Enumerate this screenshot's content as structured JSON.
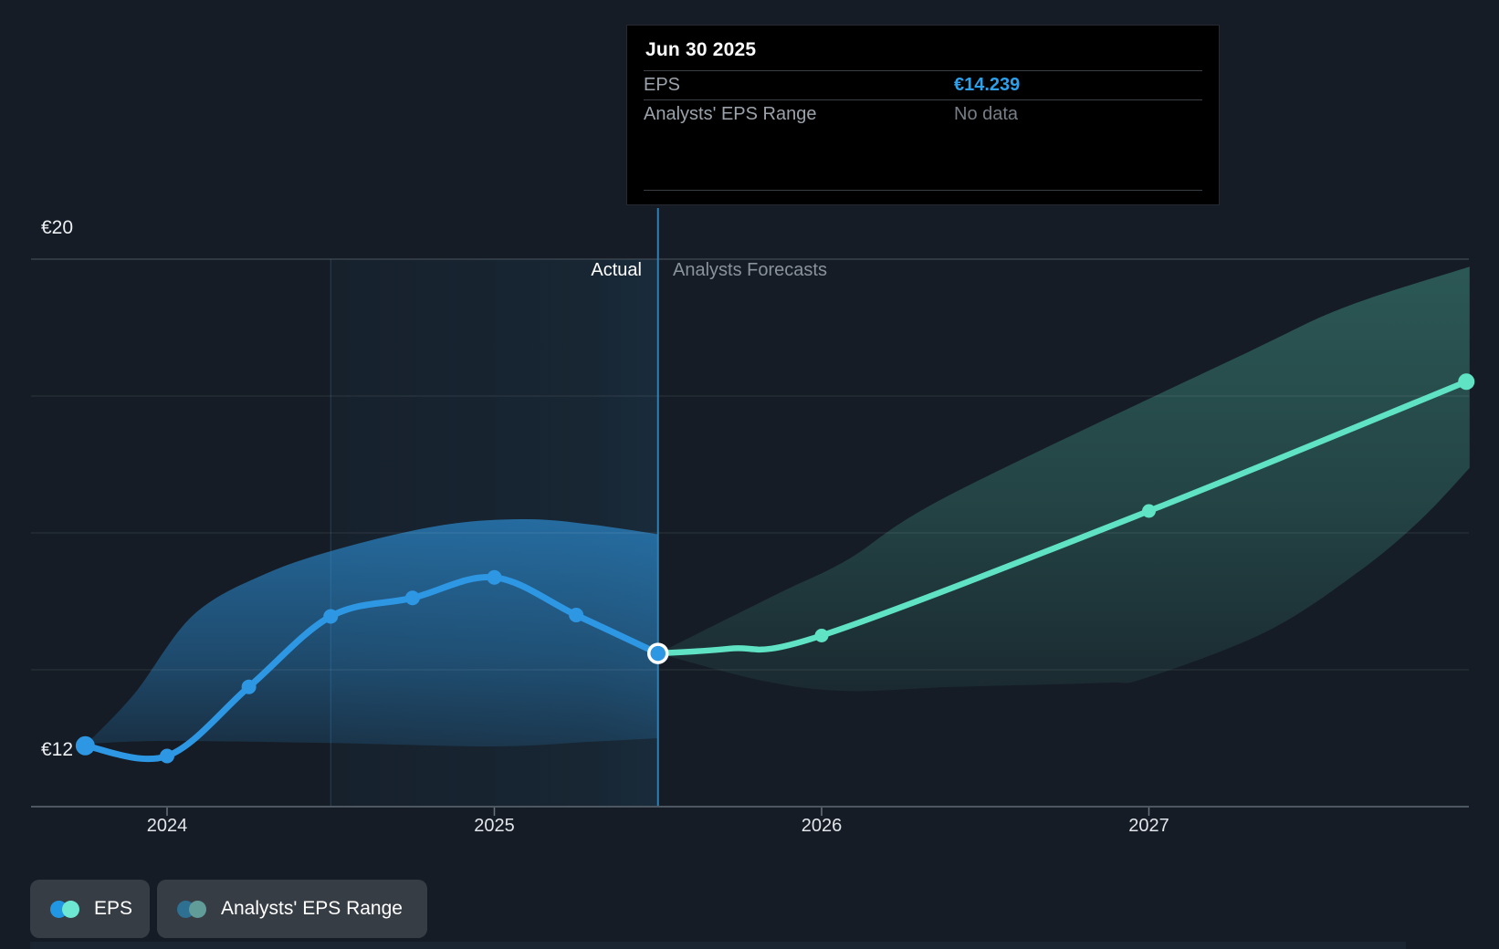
{
  "colors": {
    "background": "#151C25",
    "tooltip_bg": "#000000",
    "actual_blue": "#2E97E3",
    "forecast_teal": "#5FE3C4",
    "value_blue": "#2DA0EC",
    "muted_text": "#9AA2AB",
    "no_data_text": "#767E87",
    "section_label_gray": "#8A929C",
    "grid_top": "#4A535E",
    "grid": "rgba(255,255,255,0.10)",
    "axis_line": "#4D5761",
    "tick": "#6B747E",
    "divider_line": "#2F80B4",
    "highlight_edge": "rgba(140,190,235,0.20)",
    "legend_pill_bg": "#373D45",
    "legend_eps_dot1": "#2196E3",
    "legend_eps_dot2": "#6EE7D2",
    "legend_range_dot1": "#2E7092",
    "legend_range_dot2": "#619C99"
  },
  "tooltip": {
    "title": "Jun 30 2025",
    "rows": [
      {
        "label": "EPS",
        "value": "€14.239"
      },
      {
        "label": "Analysts' EPS Range",
        "value": "No data"
      }
    ]
  },
  "section_labels": {
    "actual": "Actual",
    "forecast": "Analysts Forecasts"
  },
  "y_axis": {
    "top_label": "€20",
    "bottom_label": "€12"
  },
  "legend": [
    {
      "label": "EPS"
    },
    {
      "label": "Analysts' EPS Range"
    }
  ],
  "chart_data": {
    "type": "line",
    "title": "EPS actual vs analysts forecast",
    "currency": "EUR",
    "ylim": [
      12,
      20
    ],
    "xlim_years": [
      2023.58,
      2027.98
    ],
    "grid": "horizontal",
    "y_gridline_values": [
      20,
      18,
      16,
      14
    ],
    "y_axis_labels": [
      {
        "value": 20,
        "label": "€20"
      },
      {
        "value": 12,
        "label": "€12"
      }
    ],
    "x_ticks": [
      {
        "year": 2024,
        "label": "2024"
      },
      {
        "year": 2025,
        "label": "2025"
      },
      {
        "year": 2026,
        "label": "2026"
      },
      {
        "year": 2027,
        "label": "2027"
      }
    ],
    "divider": {
      "x_year": 2025.5,
      "date_label": "Jun 30 2025",
      "left_label": "Actual",
      "right_label": "Analysts Forecasts"
    },
    "highlight_span_years": [
      2024.5,
      2025.5
    ],
    "selected_point": {
      "date": "Jun 30 2025",
      "series": "EPS",
      "value": 14.239
    },
    "series": [
      {
        "name": "EPS (actual)",
        "color": "#2E97E3",
        "points": [
          [
            2023.75,
            12.89
          ],
          [
            2024.0,
            12.74
          ],
          [
            2024.25,
            13.75
          ],
          [
            2024.5,
            14.78
          ],
          [
            2024.75,
            15.05
          ],
          [
            2025.0,
            15.35
          ],
          [
            2025.25,
            14.8
          ],
          [
            2025.5,
            14.239
          ]
        ],
        "dot_x": [
          2023.75,
          2024.0,
          2024.25,
          2024.5,
          2024.75,
          2025.0,
          2025.25
        ]
      },
      {
        "name": "EPS (analysts forecast)",
        "color": "#5FE3C4",
        "points": [
          [
            2025.5,
            14.239
          ],
          [
            2025.72,
            14.31
          ],
          [
            2026.0,
            14.5
          ],
          [
            2027.0,
            16.32
          ],
          [
            2027.97,
            18.21
          ]
        ],
        "dot_x": [
          2026.0,
          2027.0,
          2027.97
        ]
      }
    ],
    "bands": [
      {
        "name": "EPS range (actual period)",
        "color": "#2E97E3",
        "top": [
          [
            2023.755,
            12.92
          ],
          [
            2023.9,
            13.65
          ],
          [
            2024.08,
            14.8
          ],
          [
            2024.3,
            15.4
          ],
          [
            2024.55,
            15.8
          ],
          [
            2024.85,
            16.12
          ],
          [
            2025.1,
            16.2
          ],
          [
            2025.3,
            16.12
          ],
          [
            2025.5,
            15.98
          ]
        ],
        "bottom": [
          [
            2023.755,
            12.92
          ],
          [
            2024.0,
            12.96
          ],
          [
            2024.5,
            12.93
          ],
          [
            2025.0,
            12.88
          ],
          [
            2025.3,
            12.95
          ],
          [
            2025.5,
            13.0
          ]
        ]
      },
      {
        "name": "Analysts' EPS Range (forecast)",
        "color": "#5FE3C4",
        "top": [
          [
            2025.5,
            14.24
          ],
          [
            2025.87,
            15.12
          ],
          [
            2026.08,
            15.61
          ],
          [
            2026.39,
            16.55
          ],
          [
            2027.28,
            18.59
          ],
          [
            2027.6,
            19.3
          ],
          [
            2027.98,
            19.89
          ]
        ],
        "bottom": [
          [
            2025.5,
            14.24
          ],
          [
            2025.83,
            13.83
          ],
          [
            2026.08,
            13.69
          ],
          [
            2026.4,
            13.75
          ],
          [
            2026.86,
            13.81
          ],
          [
            2026.99,
            13.88
          ],
          [
            2027.36,
            14.56
          ],
          [
            2027.64,
            15.43
          ],
          [
            2027.83,
            16.19
          ],
          [
            2027.98,
            16.95
          ]
        ]
      }
    ]
  }
}
